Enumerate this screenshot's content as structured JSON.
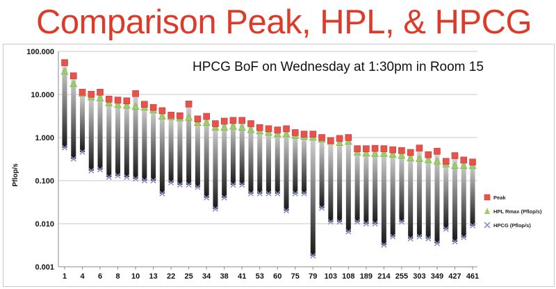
{
  "slide": {
    "title": "Comparison Peak, HPL, & HPCG"
  },
  "chart_data": {
    "type": "scatter",
    "annotation": "HPCG BoF on Wednesday at 1:30pm in Room 15",
    "ylabel": "Pflop/s",
    "yscale": "log",
    "ylim": [
      0.001,
      100
    ],
    "y_tick_labels": [
      "0.001",
      "0.010",
      "0.100",
      "1.000",
      "10.000",
      "100.000"
    ],
    "x_tick_labels": [
      "1",
      "4",
      "6",
      "8",
      "10",
      "13",
      "22",
      "25",
      "34",
      "38",
      "41",
      "53",
      "60",
      "75",
      "79",
      "103",
      "108",
      "189",
      "214",
      "255",
      "303",
      "349",
      "427",
      "461"
    ],
    "legend_position": "right",
    "grid": true,
    "colors": {
      "peak": "#e8524a",
      "hpl": "#9bcf63",
      "hpcg": "#8a8fc8",
      "bar_top": "#d8d8d8",
      "bar_bottom": "#181818"
    },
    "series": [
      {
        "name": "Peak",
        "values": [
          54.9,
          27.1,
          11.3,
          10.1,
          11.3,
          7.8,
          7.4,
          7.1,
          10.5,
          5.9,
          5.0,
          4.2,
          3.3,
          3.2,
          6.0,
          2.7,
          3.1,
          2.1,
          2.4,
          2.5,
          2.5,
          2.1,
          1.7,
          1.6,
          1.5,
          1.6,
          1.3,
          1.2,
          1.2,
          1.0,
          0.85,
          0.95,
          1.0,
          0.55,
          0.55,
          0.56,
          0.55,
          0.52,
          0.5,
          0.45,
          0.57,
          0.4,
          0.48,
          0.28,
          0.38,
          0.3,
          0.27
        ]
      },
      {
        "name": "HPL Rmax (Pflop/s)",
        "values": [
          33.9,
          17.6,
          10.5,
          8.6,
          8.2,
          6.3,
          5.7,
          5.5,
          5.2,
          5.0,
          4.3,
          3.1,
          3.0,
          2.8,
          2.9,
          2.2,
          2.2,
          1.7,
          1.7,
          1.8,
          1.7,
          1.5,
          1.4,
          1.3,
          1.2,
          1.2,
          1.1,
          1.05,
          1.0,
          0.9,
          0.8,
          0.75,
          0.8,
          0.45,
          0.43,
          0.42,
          0.42,
          0.4,
          0.38,
          0.33,
          0.32,
          0.3,
          0.28,
          0.24,
          0.22,
          0.22,
          0.22
        ]
      },
      {
        "name": "HPCG (Pflop/s)",
        "values": [
          0.58,
          0.32,
          0.46,
          0.17,
          0.18,
          0.12,
          0.13,
          0.12,
          0.11,
          0.1,
          0.1,
          0.05,
          0.09,
          0.08,
          0.08,
          0.07,
          0.04,
          0.022,
          0.04,
          0.08,
          0.08,
          0.05,
          0.05,
          0.05,
          0.05,
          0.02,
          0.05,
          0.05,
          0.0018,
          0.023,
          0.011,
          0.011,
          0.0065,
          0.011,
          0.01,
          0.01,
          0.0032,
          0.005,
          0.011,
          0.0045,
          0.005,
          0.0045,
          0.0035,
          0.0075,
          0.0038,
          0.0048,
          0.009
        ]
      }
    ]
  }
}
